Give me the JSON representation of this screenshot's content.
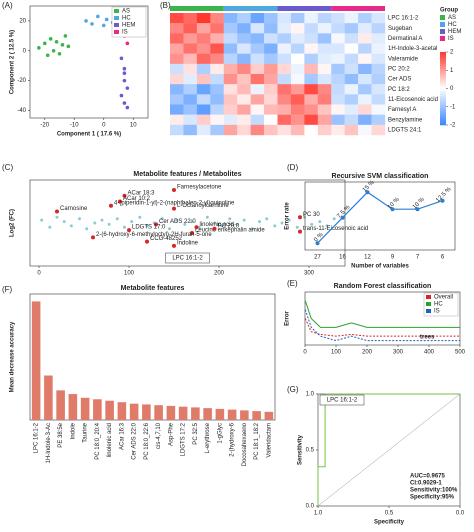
{
  "chart_data": [
    {
      "type": "scatter",
      "panel": "(A)",
      "xlabel": "Component 1 ( 17.6 %)",
      "ylabel": "Component 2 ( 12.5 %)",
      "xlim": [
        -25,
        15
      ],
      "xticks": [
        -20,
        -10,
        0,
        10
      ],
      "ylim": [
        -45,
        30
      ],
      "yticks": [
        -40,
        -20,
        0,
        20
      ],
      "legend": "upper right",
      "series": [
        {
          "name": "AS",
          "color": "#3cb44b",
          "x": [
            -22,
            -20,
            -19,
            -18,
            -17,
            -16,
            -15,
            -14,
            -13,
            -12
          ],
          "y": [
            2,
            5,
            -3,
            8,
            0,
            6,
            -2,
            4,
            10,
            3
          ]
        },
        {
          "name": "HC",
          "color": "#4fa8e0",
          "x": [
            -6,
            -4,
            -2,
            0,
            1,
            3,
            4,
            5
          ],
          "y": [
            20,
            18,
            23,
            17,
            21,
            19,
            22,
            16
          ]
        },
        {
          "name": "HEM",
          "color": "#6a5acd",
          "x": [
            6,
            7,
            7,
            8,
            6,
            7,
            8,
            7
          ],
          "y": [
            -5,
            -12,
            -20,
            -25,
            -30,
            -35,
            -38,
            -15
          ]
        },
        {
          "name": "IS",
          "color": "#e7298a",
          "x": [
            6,
            7,
            8,
            7,
            6,
            8,
            7,
            9
          ],
          "y": [
            22,
            18,
            15,
            10,
            25,
            5,
            12,
            20
          ]
        }
      ]
    },
    {
      "type": "heatmap",
      "panel": "(B)",
      "legend_title": "Group",
      "rows": [
        "LPC 16:1-2",
        "Sugeban",
        "Dermatinal A",
        "1H-Indole-3-acetal",
        "Valeramide",
        "PC 20:2",
        "Cer ADS",
        "PC 18:2",
        "11-Eicosenoic acid",
        "Farnesyl A",
        "Benzylamine",
        "LDGTS 24:1"
      ],
      "scale_ticks": [
        2,
        1,
        0,
        -1,
        -2
      ],
      "series": [
        {
          "name": "AS",
          "color": "#3cb44b",
          "values": [
            [
              1.8,
              1.5,
              2,
              1.2
            ],
            [
              1.2,
              1.6,
              0.9,
              1.4
            ],
            [
              1.5,
              1,
              1.3,
              0.8
            ],
            [
              0.9,
              1.4,
              1.1,
              1.7
            ],
            [
              1.1,
              0.7,
              1.5,
              1.2
            ],
            [
              -0.5,
              0.3,
              -0.8,
              0.2
            ],
            [
              0.4,
              -0.3,
              0.6,
              -0.6
            ],
            [
              -1.2,
              -0.8,
              -1.5,
              -1
            ],
            [
              -0.9,
              -1.3,
              -0.6,
              -1.1
            ],
            [
              -1.4,
              -1,
              -1.6,
              -0.7
            ],
            [
              0.2,
              -0.4,
              0.5,
              0.1
            ],
            [
              -0.6,
              -1.1,
              -0.3,
              -0.9
            ]
          ]
        },
        {
          "name": "HC",
          "color": "#4fa8e0",
          "values": [
            [
              -1.2,
              -0.8,
              -1.5,
              -1
            ],
            [
              -0.9,
              -1.3,
              -0.4,
              -1.1
            ],
            [
              -0.6,
              -1,
              -1.2,
              -0.5
            ],
            [
              -1.1,
              -0.4,
              -0.9,
              -1.3
            ],
            [
              -0.7,
              -1.2,
              -0.5,
              -0.9
            ],
            [
              0.8,
              1.2,
              0.5,
              1
            ],
            [
              1.1,
              0.6,
              1.4,
              0.9
            ],
            [
              0.3,
              0.7,
              -0.2,
              0.5
            ],
            [
              0.6,
              0.2,
              0.9,
              0.4
            ],
            [
              0.5,
              0.9,
              0.1,
              0.7
            ],
            [
              -0.3,
              0.2,
              -0.6,
              0
            ],
            [
              0.9,
              0.4,
              1.2,
              0.6
            ]
          ]
        },
        {
          "name": "HEM",
          "color": "#6a5acd",
          "values": [
            [
              -0.4,
              -0.9,
              -0.2,
              -0.7
            ],
            [
              -0.3,
              0.1,
              -0.6,
              -0.2
            ],
            [
              -0.8,
              -0.3,
              -0.5,
              -1
            ],
            [
              -0.2,
              -0.7,
              0.1,
              -0.4
            ],
            [
              -0.5,
              0,
              -0.8,
              -0.3
            ],
            [
              0.4,
              -0.2,
              0.7,
              0.1
            ],
            [
              -0.6,
              -0.1,
              -0.9,
              -0.4
            ],
            [
              1.4,
              1,
              1.8,
              1.2
            ],
            [
              1.2,
              1.6,
              0.8,
              1.3
            ],
            [
              0.8,
              1.3,
              1.1,
              0.6
            ],
            [
              1.5,
              1.1,
              1.8,
              0.9
            ],
            [
              0.3,
              0.7,
              0,
              0.5
            ]
          ]
        },
        {
          "name": "IS",
          "color": "#e7298a",
          "values": [
            [
              -0.5,
              -0.2,
              -0.8,
              -0.4
            ],
            [
              -0.6,
              -0.9,
              -0.3,
              -0.7
            ],
            [
              -0.1,
              -0.5,
              0.2,
              -0.3
            ],
            [
              -0.4,
              0,
              -0.7,
              -0.2
            ],
            [
              -0.2,
              -0.6,
              0.1,
              -0.4
            ],
            [
              -0.9,
              -0.5,
              -1.2,
              -0.7
            ],
            [
              -0.7,
              -1.1,
              -0.4,
              -0.8
            ],
            [
              -0.6,
              -0.2,
              -0.9,
              -0.4
            ],
            [
              -0.5,
              -0.8,
              -0.2,
              -0.6
            ],
            [
              0.1,
              -0.3,
              0.4,
              -0.1
            ],
            [
              -1,
              -0.6,
              -1.3,
              -0.8
            ],
            [
              0.2,
              0.6,
              -0.1,
              0.4
            ]
          ]
        }
      ]
    },
    {
      "type": "scatter",
      "panel": "(C)",
      "title": "Metabolite features / Metabolites",
      "ylabel": "Log2 (FC)",
      "xlim": [
        -10,
        340
      ],
      "xticks": [
        0,
        100,
        200,
        300
      ],
      "ylim": [
        -3,
        3
      ],
      "annotation": "LPC 16:1-2",
      "points": {
        "color": "#8ec9d6",
        "x": [
          3,
          12,
          20,
          28,
          36,
          45,
          53,
          62,
          70,
          78,
          87,
          95,
          103,
          112,
          120,
          128,
          137,
          145,
          153,
          162,
          170,
          178,
          187,
          195,
          203,
          212,
          220,
          228,
          237,
          245,
          253,
          262,
          270,
          278,
          287,
          295,
          303,
          312,
          320,
          328
        ],
        "y": [
          0.2,
          -0.3,
          0.4,
          0.1,
          -0.2,
          0.3,
          -0.4,
          0.0,
          0.2,
          -0.1,
          0.3,
          -0.3,
          0.1,
          0.4,
          -0.2,
          0.0,
          0.3,
          -0.4,
          0.2,
          -0.1,
          0.1,
          -0.3,
          0.4,
          0.0,
          -0.2,
          0.3,
          -0.1,
          0.2,
          -0.4,
          0.1,
          0.3,
          -0.2,
          0.0,
          0.2,
          -0.3,
          0.4,
          -0.1,
          0.1,
          -0.2,
          0.3
        ]
      },
      "labeled": {
        "color": "#d62728",
        "x": [
          95,
          150,
          90,
          80,
          150,
          20,
          170,
          195,
          130,
          175,
          290,
          290,
          60,
          100,
          120,
          150
        ],
        "y": [
          1.9,
          2.3,
          1.5,
          1.2,
          1.0,
          0.8,
          -0.7,
          -0.4,
          -0.1,
          -0.3,
          0.4,
          -0.6,
          -1.0,
          -0.5,
          -1.3,
          -1.6
        ],
        "labels": [
          "ACar 18:3",
          "Farnesylacetone",
          "ACar 10:2",
          "4-(piperidin-1-yl)-2-(naphthalen-2-yl)quinoline",
          "L-Octanoylcarnitine",
          "Carnosine",
          "Leucine enkephalin amide",
          "PC 20:0",
          "Cer ADS 22:0",
          "linolenic acid",
          "PC 30",
          "trans-11-Eicosenoic acid",
          "2-(6-hydroxy-6-methyloctyl)-2H-furan-5-one",
          "LDGTS 17:0",
          "CCG-48252",
          "Indoline"
        ]
      }
    },
    {
      "type": "line",
      "panel": "(D)",
      "title": "Recursive SVM classification",
      "xlabel": "Number of variables",
      "ylabel": "Error rate",
      "categories": [
        "27",
        "16",
        "12",
        "9",
        "7",
        "6"
      ],
      "values": [
        0,
        7.5,
        15,
        10,
        10,
        12.5
      ],
      "value_labels": [
        "0 %",
        "7.5 %",
        "15 %",
        "10 %",
        "10 %",
        "12.5 %"
      ],
      "ylim": [
        -2,
        18
      ],
      "color": "#2f7fd0"
    },
    {
      "type": "line",
      "panel": "(E)",
      "title": "Random Forest classification",
      "ylabel": "Error",
      "annotation": "trees",
      "xlim": [
        0,
        500
      ],
      "xticks": [
        0,
        100,
        200,
        300,
        400,
        500
      ],
      "ylim": [
        0,
        0.6
      ],
      "legend": "upper right",
      "x": [
        1,
        20,
        50,
        100,
        150,
        200,
        250,
        300,
        350,
        400,
        450,
        500
      ],
      "series": [
        {
          "name": "Overall",
          "color": "#d62728",
          "dashed": true,
          "values": [
            0.3,
            0.15,
            0.12,
            0.1,
            0.12,
            0.1,
            0.1,
            0.1,
            0.1,
            0.1,
            0.1,
            0.1
          ]
        },
        {
          "name": "HC",
          "color": "#2ca02c",
          "dashed": false,
          "values": [
            0.5,
            0.3,
            0.2,
            0.2,
            0.25,
            0.2,
            0.2,
            0.2,
            0.2,
            0.2,
            0.2,
            0.2
          ]
        },
        {
          "name": "IS",
          "color": "#1f5fbf",
          "dashed": true,
          "values": [
            0.4,
            0.2,
            0.1,
            0.05,
            0.1,
            0.05,
            0.05,
            0.05,
            0.05,
            0.05,
            0.05,
            0.05
          ]
        }
      ]
    },
    {
      "type": "bar",
      "panel": "(F)",
      "title": "Metabolite features",
      "ylabel": "Mean decrease accuracy",
      "color": "#e07b6a",
      "ylim": [
        0,
        0.17
      ],
      "categories": [
        "LPC 16:1-2",
        "1H-Indole-3-Ac",
        "PE 38:5e",
        "Indole",
        "Taurine",
        "PC 18:0_20:4",
        "linolenic acid",
        "ACar 16:3",
        "Cer ADS 22:0",
        "PC 18:0_22:6",
        "cis-4,7,10",
        "Asp-Phe",
        "LDGTS 17:2",
        "PC 32:5",
        "L-erythrose",
        "1-gGlyc",
        "2-(hydroxy-6",
        "Docosahexaeno",
        "PC 18:1_18:2",
        "Valeridactam"
      ],
      "values": [
        0.16,
        0.06,
        0.04,
        0.035,
        0.03,
        0.028,
        0.026,
        0.024,
        0.022,
        0.021,
        0.02,
        0.019,
        0.018,
        0.017,
        0.016,
        0.015,
        0.014,
        0.013,
        0.012,
        0.011
      ]
    },
    {
      "type": "line",
      "panel": "(G)",
      "xlabel": "Specificity",
      "ylabel": "Sensitivity",
      "annotation": "LPC 16:1-2",
      "annotations": [
        "AUC=0.9675",
        "CI:0.9029-1",
        "Sensitivity:100%",
        "Specificity:95%"
      ],
      "xlim": [
        1,
        0
      ],
      "xticks": [
        {
          "value": 1,
          "label": "1.0"
        },
        {
          "value": 0.5,
          "label": "0.5"
        },
        {
          "value": 0,
          "label": "0.0"
        }
      ],
      "ylim": [
        0,
        1
      ],
      "yticks": [
        {
          "value": 0,
          "label": "0.0"
        },
        {
          "value": 0.5,
          "label": "0.5"
        },
        {
          "value": 1,
          "label": "1.0"
        }
      ],
      "series": [
        {
          "color": "#7ac143",
          "x": [
            1,
            1,
            0.95,
            0.95,
            0
          ],
          "values": [
            0,
            0.35,
            0.35,
            1,
            1
          ]
        }
      ]
    }
  ]
}
